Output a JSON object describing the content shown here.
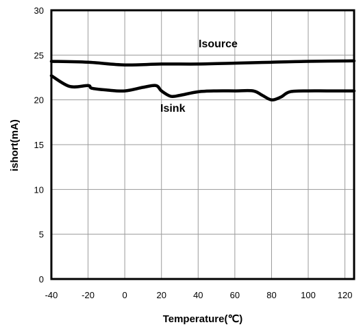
{
  "chart_data": {
    "type": "line",
    "xlabel": "Temperature(℃)",
    "ylabel": "ishort(mA)",
    "xlim": [
      -40,
      125
    ],
    "ylim": [
      0,
      30
    ],
    "x_ticks": [
      "-40",
      "-20",
      "0",
      "20",
      "40",
      "60",
      "80",
      "100",
      "120"
    ],
    "y_ticks": [
      "0",
      "5",
      "10",
      "15",
      "20",
      "25",
      "30"
    ],
    "grid": true,
    "line_color": "#000000",
    "series": [
      {
        "name": "Isource",
        "x": [
          -40,
          -20,
          0,
          20,
          40,
          60,
          80,
          100,
          125
        ],
        "y": [
          24.3,
          24.2,
          23.9,
          24.0,
          24.0,
          24.1,
          24.2,
          24.3,
          24.35
        ]
      },
      {
        "name": "Isink",
        "x": [
          -40,
          -30,
          -20,
          -18,
          -10,
          0,
          10,
          17,
          20,
          25,
          30,
          40,
          50,
          60,
          70,
          75,
          80,
          85,
          90,
          100,
          110,
          125
        ],
        "y": [
          22.7,
          21.5,
          21.6,
          21.3,
          21.1,
          21.0,
          21.4,
          21.6,
          21.0,
          20.4,
          20.5,
          20.9,
          21.0,
          21.0,
          21.0,
          20.5,
          20.0,
          20.3,
          20.9,
          21.0,
          21.0,
          21.0
        ]
      }
    ]
  }
}
